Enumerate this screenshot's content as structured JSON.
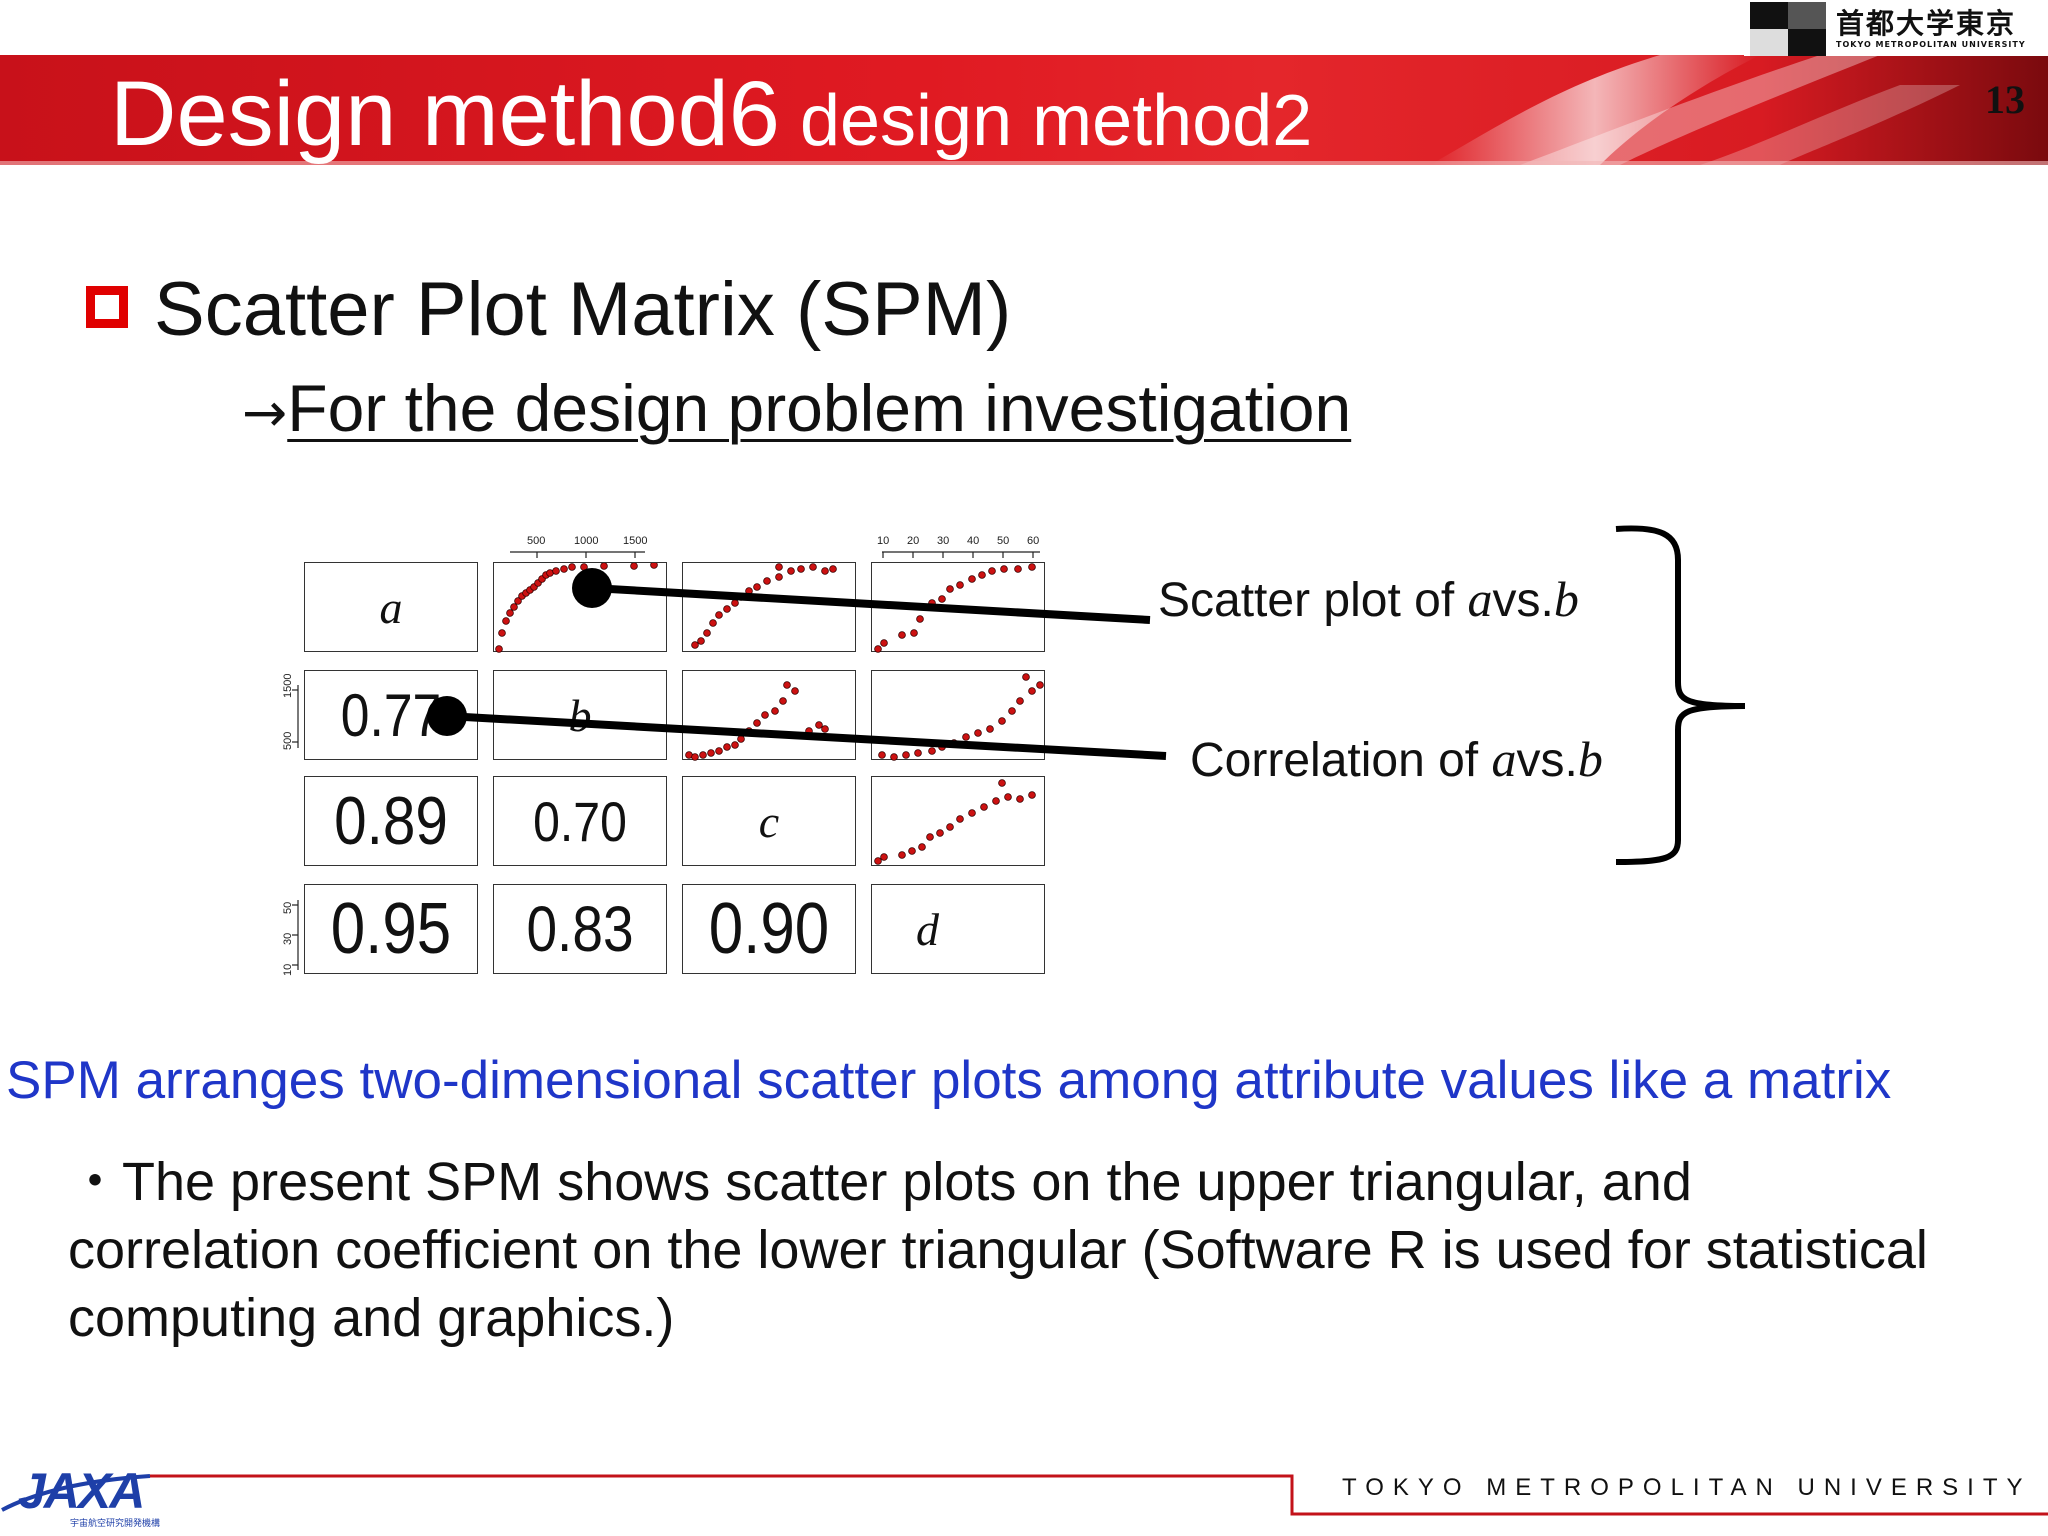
{
  "header": {
    "title_main": "Design method6",
    "title_sub": " design method2",
    "slide_number": "13",
    "band_colors": {
      "red_dark": "#c3121a",
      "red": "#de1c22",
      "highlight": "#ffffff"
    }
  },
  "logo": {
    "jp_name": "首都大学東京",
    "en_name": "TOKYO METROPOLITAN UNIVERSITY"
  },
  "bullet": {
    "heading": "Scatter Plot Matrix (SPM)",
    "arrow": "→",
    "subheading": "For the design problem investigation",
    "box_color": "#e00000"
  },
  "matrix": {
    "variables": [
      "a",
      "b",
      "c",
      "d"
    ],
    "correlations": {
      "b_a": "0.77",
      "c_a": "0.89",
      "c_b": "0.70",
      "d_a": "0.95",
      "d_b": "0.83",
      "d_c": "0.90"
    },
    "top_axis_b": [
      "500",
      "1000",
      "1500"
    ],
    "top_axis_d": [
      "10",
      "20",
      "30",
      "40",
      "50",
      "60"
    ],
    "left_axis_b": [
      "500",
      "1500"
    ],
    "left_axis_d": [
      "10",
      "30",
      "50"
    ],
    "point_color": "#cc1111"
  },
  "callouts": {
    "scatter_prefix": "Scatter plot of ",
    "corr_prefix": "Correlation of ",
    "var_a": "a",
    "vs": "vs.",
    "var_b": "b"
  },
  "summary": "SPM arranges two-dimensional scatter plots among attribute values like a matrix",
  "summary_color": "#1f36c8",
  "body": {
    "line1": "・The present SPM shows scatter plots on the upper triangular, and",
    "line2": "correlation coefficient on the lower triangular (Software R is used for statistical",
    "line3": "computing and graphics.)"
  },
  "footer": {
    "agency_logo_text": "JAXA",
    "agency_logo_subtext": "宇宙航空研究開発機構",
    "university": "TOKYO METROPOLITAN UNIVERSITY",
    "rule_color": "#c3121a"
  }
}
